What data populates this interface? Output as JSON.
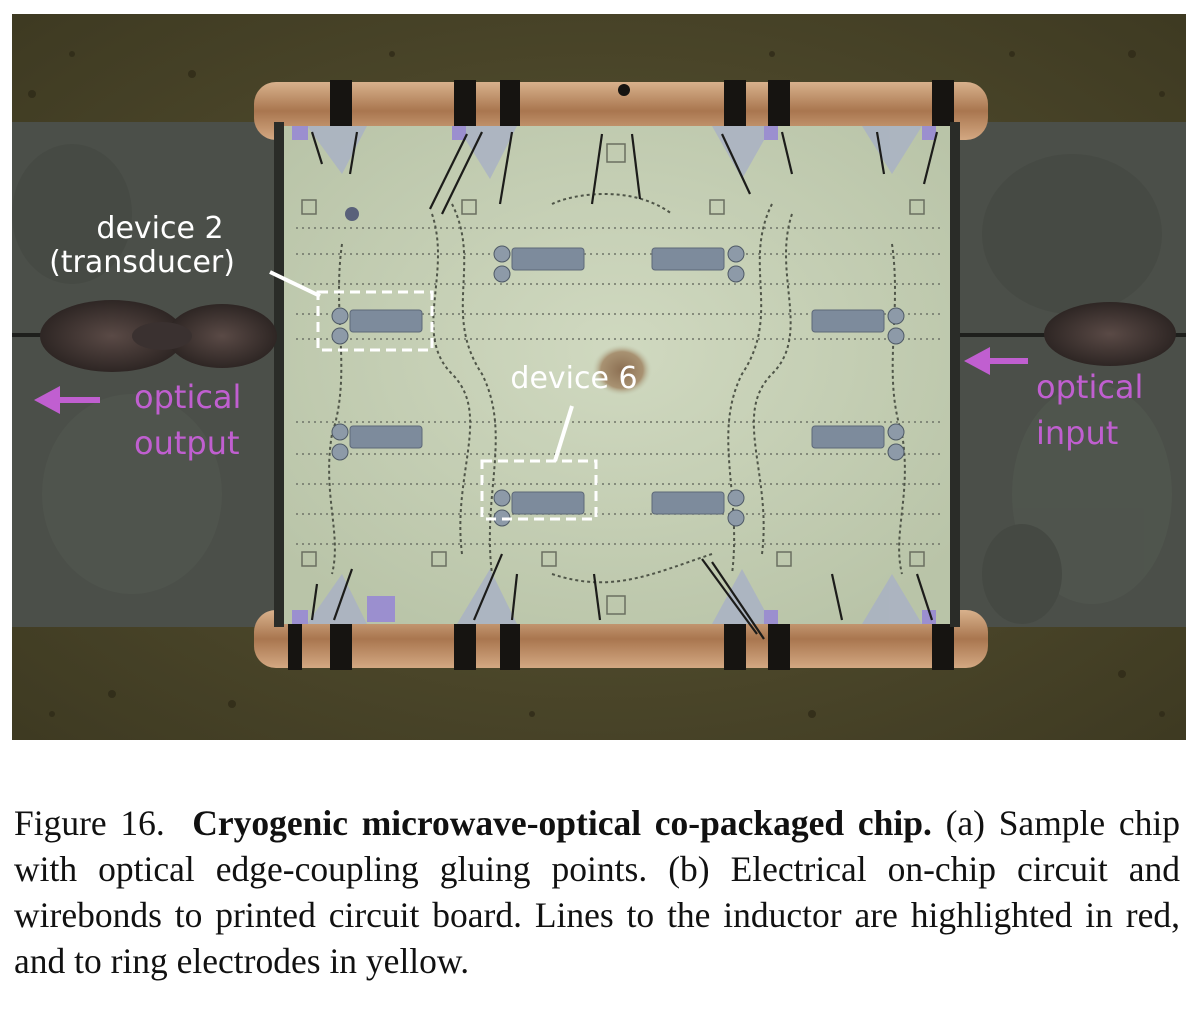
{
  "figure": {
    "labels": {
      "device2_line1": "device 2",
      "device2_line2": "(transducer)",
      "device6": "device 6",
      "optical_output_line1": "optical",
      "optical_output_line2": "output",
      "optical_input_line1": "optical",
      "optical_input_line2": "input"
    },
    "colors": {
      "label_white": "#ffffff",
      "optical_magenta": "#c05fd0",
      "board": "#4f4a2c",
      "substrate": "#4a4e48",
      "chip": "#c6d0b6",
      "copper": "#b98a63",
      "bondpad_purple": "#9b8fcf"
    }
  },
  "caption": {
    "figure_number": "Figure 16.",
    "title": "Cryogenic microwave-optical co-packaged chip.",
    "body": "(a) Sample chip with optical edge-coupling gluing points. (b) Electrical on-chip circuit and wirebonds to printed circuit board. Lines to the inductor are highlighted in red, and to ring electrodes in yellow."
  }
}
